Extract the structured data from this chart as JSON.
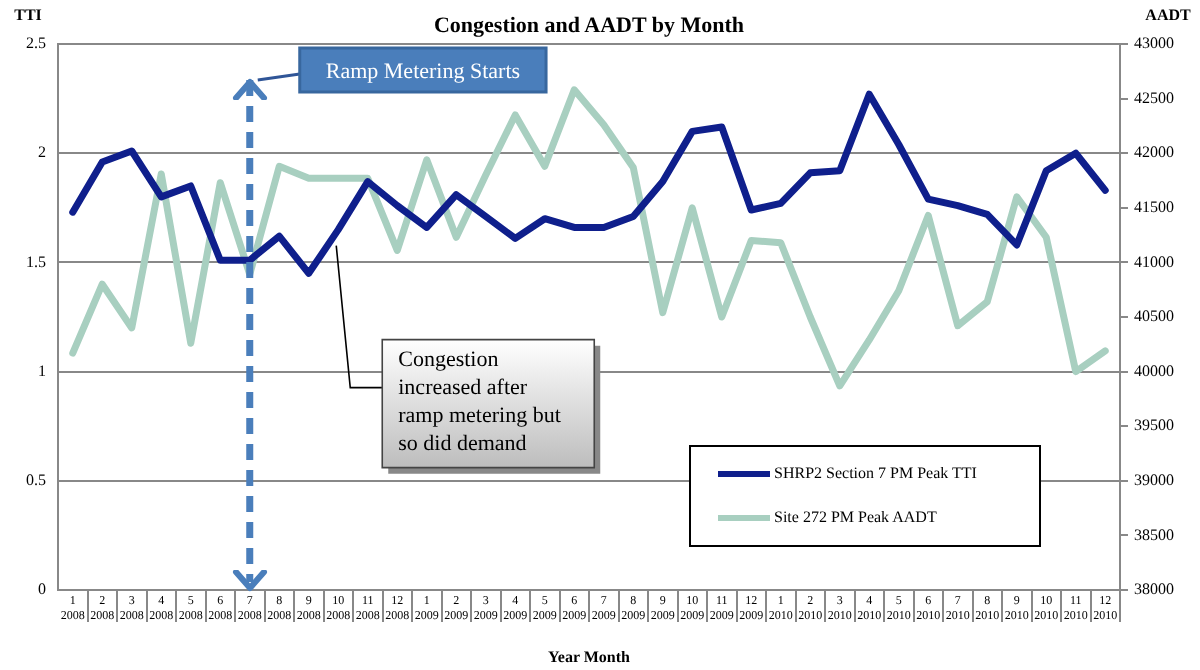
{
  "chart_data": {
    "type": "line",
    "title": "Congestion and AADT by Month",
    "xlabel": "Year Month",
    "ylabel": "TTI",
    "y2label": "AADT",
    "categories": [
      "1\n2008",
      "2\n2008",
      "3\n2008",
      "4\n2008",
      "5\n2008",
      "6\n2008",
      "7\n2008",
      "8\n2008",
      "9\n2008",
      "10\n2008",
      "11\n2008",
      "12\n2008",
      "1\n2009",
      "2\n2009",
      "3\n2009",
      "4\n2009",
      "5\n2009",
      "6\n2009",
      "7\n2009",
      "8\n2009",
      "9\n2009",
      "10\n2009",
      "11\n2009",
      "12\n2009",
      "1\n2010",
      "2\n2010",
      "3\n2010",
      "4\n2010",
      "5\n2010",
      "6\n2010",
      "7\n2010",
      "8\n2010",
      "9\n2010",
      "10\n2010",
      "11\n2010",
      "12\n2010"
    ],
    "series": [
      {
        "name": "SHRP2 Section 7 PM Peak TTI",
        "color": "#0f1f8c",
        "values": [
          1.73,
          1.96,
          2.01,
          1.8,
          1.85,
          1.51,
          1.51,
          1.62,
          1.45,
          1.65,
          1.87,
          1.76,
          1.66,
          1.81,
          1.71,
          1.61,
          1.7,
          1.66,
          1.66,
          1.71,
          1.87,
          2.1,
          2.12,
          1.74,
          1.77,
          1.91,
          1.92,
          2.27,
          2.04,
          1.79,
          1.76,
          1.72,
          1.58,
          1.92,
          2.0,
          1.83
        ]
      },
      {
        "name": "Site 272 PM Peak AADT",
        "color": "#a8cfc0",
        "axis": "y2",
        "values": [
          40170,
          40800,
          40400,
          41810,
          40260,
          41730,
          40890,
          41880,
          41770,
          41770,
          41770,
          41110,
          41940,
          41230,
          41800,
          42350,
          41880,
          42580,
          42260,
          41870,
          40540,
          41500,
          40500,
          41200,
          41180,
          40500,
          39870,
          40290,
          40740,
          41430,
          40420,
          40640,
          41600,
          41230,
          40000,
          40190
        ]
      }
    ],
    "ylim": [
      0,
      2.5
    ],
    "yticks": [
      0,
      0.5,
      1,
      1.5,
      2,
      2.5
    ],
    "y2lim": [
      38000,
      43000
    ],
    "y2ticks": [
      38000,
      38500,
      39000,
      39500,
      40000,
      40500,
      41000,
      41500,
      42000,
      42500,
      43000
    ],
    "grid": "y",
    "legend": "bottom right",
    "marker": "none",
    "line_style": "solid",
    "ref_lines": [
      {
        "axis": "x",
        "value": "7\n2008",
        "label": "Ramp Metering Starts",
        "color": "#4a7ebb",
        "line_style": "dashed"
      }
    ],
    "annotations": [
      {
        "text": "Congestion increased after ramp metering but so did demand",
        "x": "10\n2008",
        "y": 1.65
      }
    ]
  }
}
